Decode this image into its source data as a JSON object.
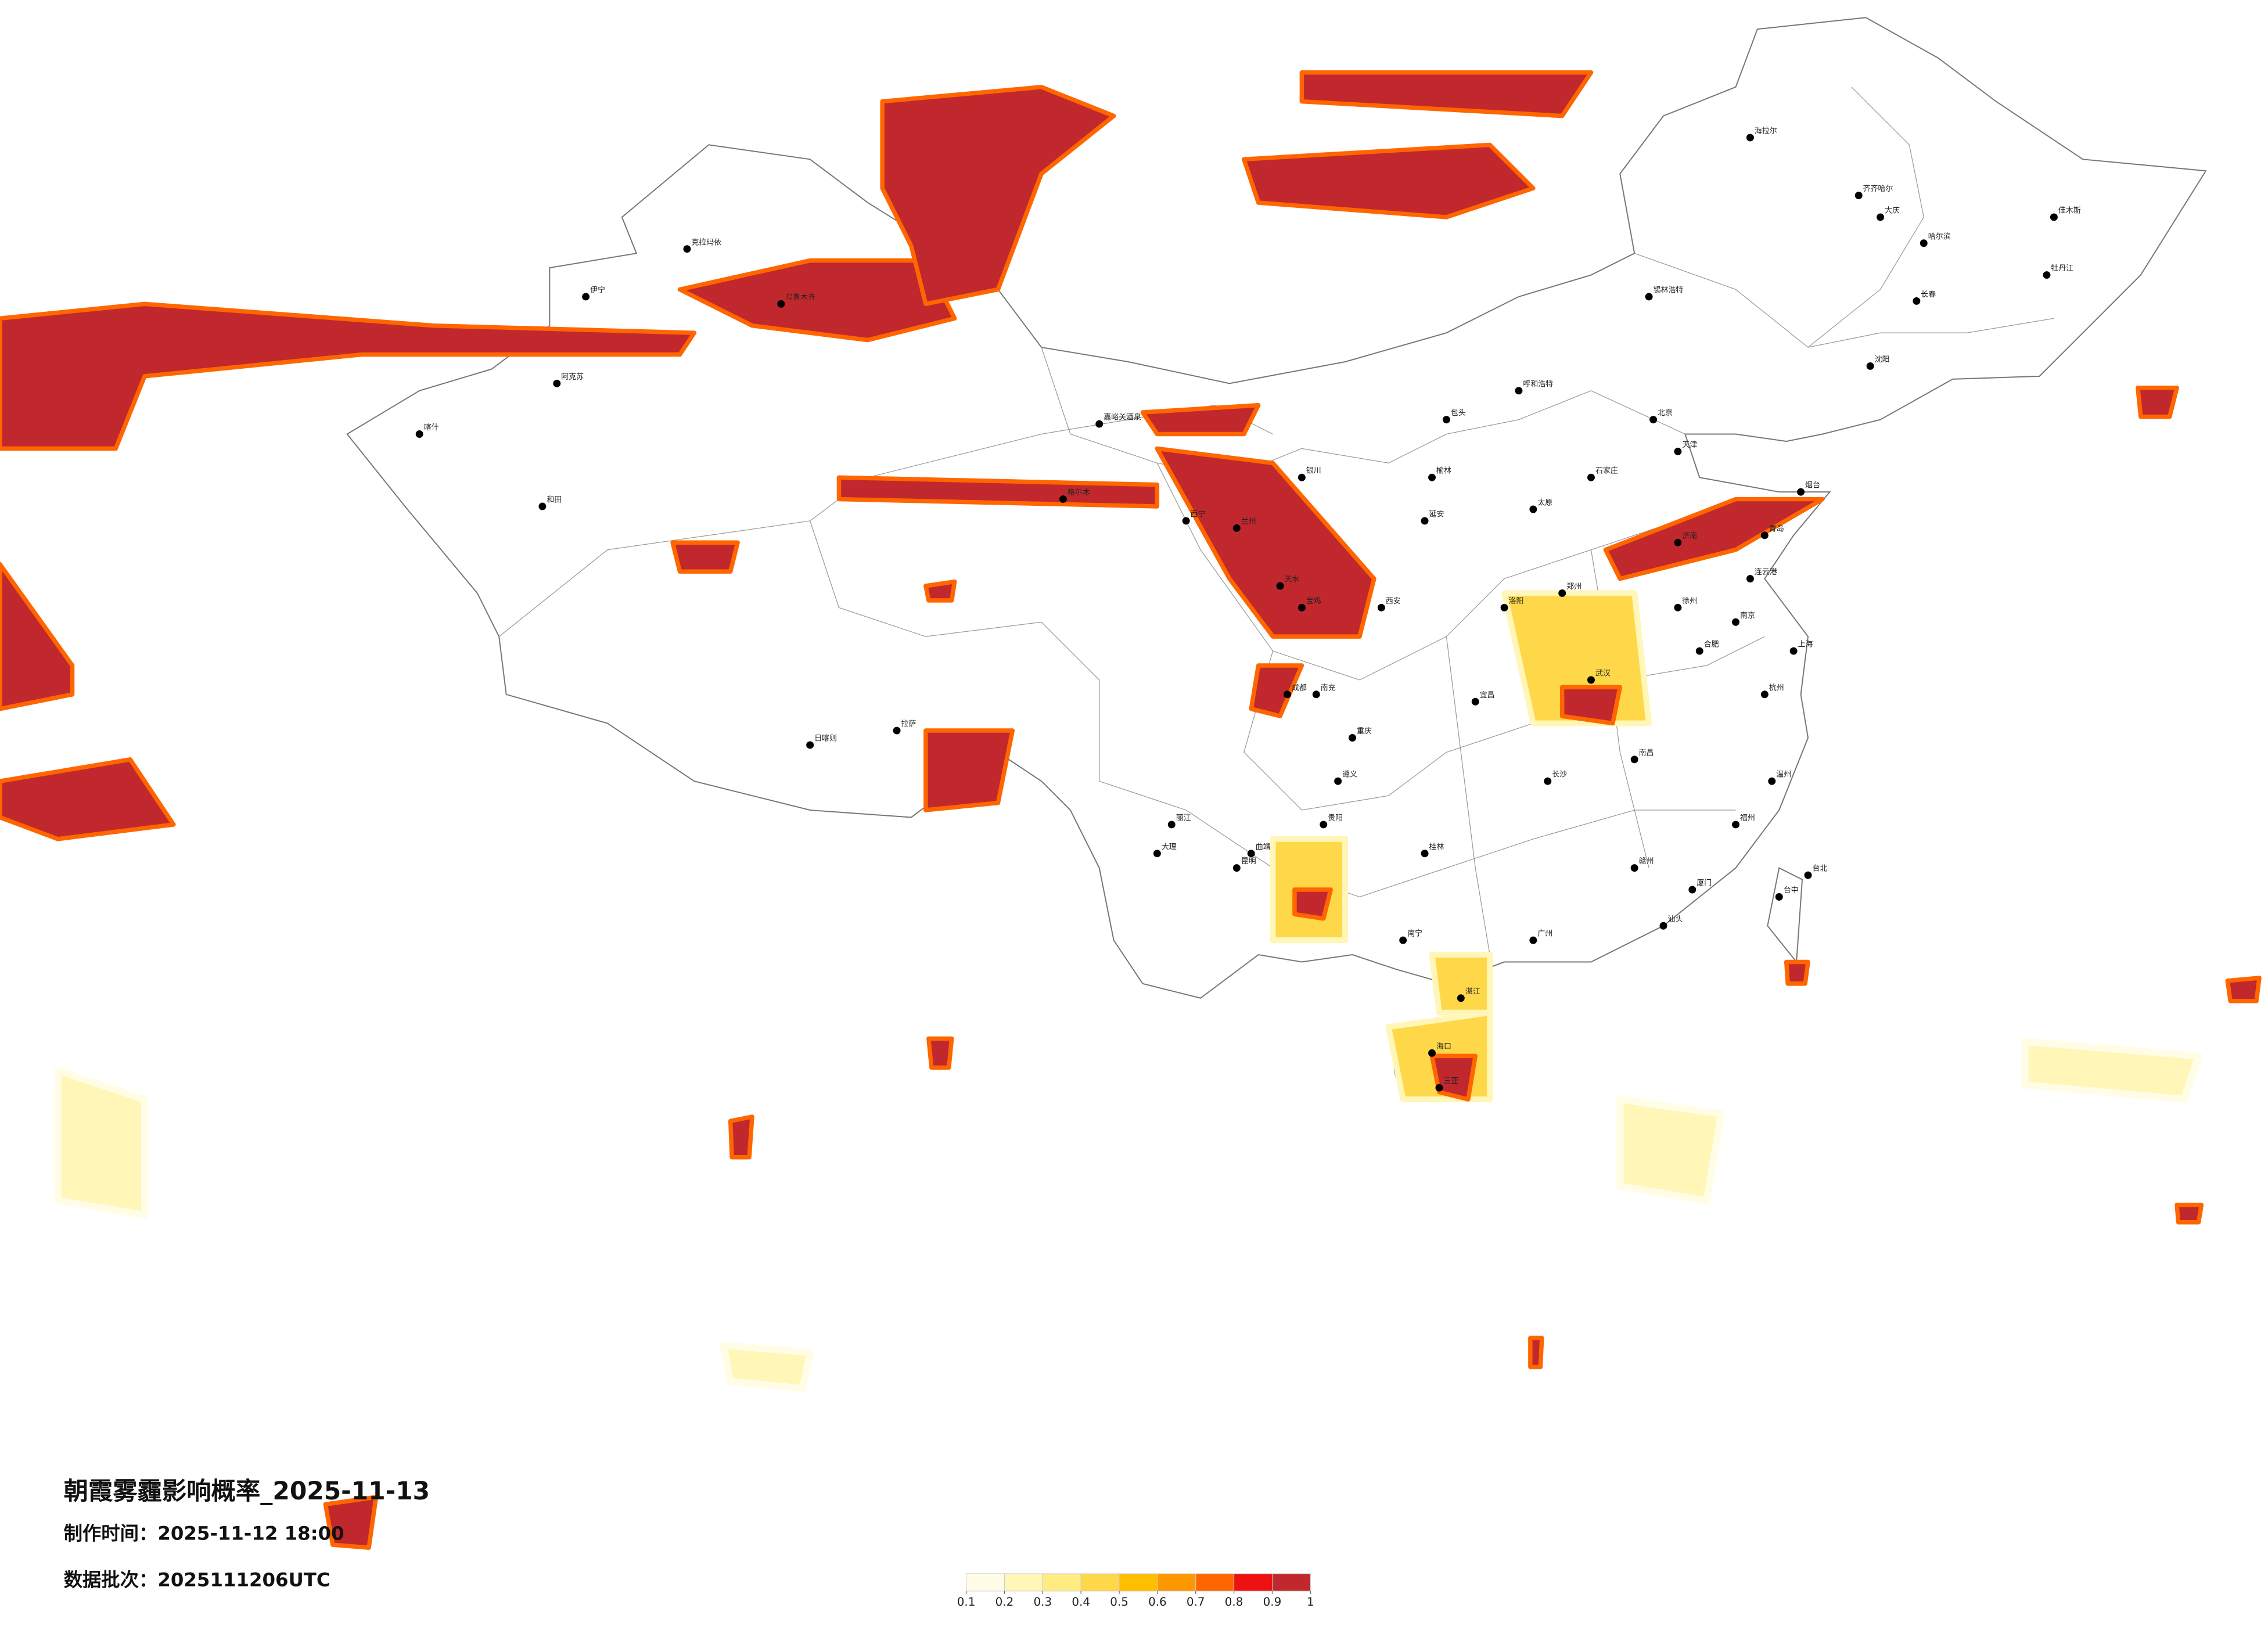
{
  "title": "朝霞雾霾影响概率_2025-11-13",
  "production_time": "制作时间：2025-11-12 18:00",
  "data_batch": "数据批次：2025111206UTC",
  "legend": {
    "ticks": [
      0.1,
      0.2,
      0.3,
      0.4,
      0.5,
      0.6,
      0.7,
      0.8,
      0.9,
      1
    ],
    "colors": [
      "#fffde6",
      "#fff6b8",
      "#ffec82",
      "#ffd84a",
      "#ffbf00",
      "#ff9800",
      "#ff6600",
      "#ee1111",
      "#c0282d"
    ]
  },
  "cities": [
    "北京",
    "天津",
    "石家庄",
    "太原",
    "济南",
    "郑州",
    "西安",
    "兰州",
    "西宁",
    "银川",
    "呼和浩特",
    "哈尔滨",
    "长春",
    "沈阳",
    "乌鲁木齐",
    "拉萨",
    "成都",
    "重庆",
    "贵阳",
    "昆明",
    "南宁",
    "广州",
    "海口",
    "长沙",
    "武汉",
    "南昌",
    "合肥",
    "南京",
    "上海",
    "杭州",
    "福州",
    "台北",
    "台中",
    "和田",
    "喀什",
    "阿克苏",
    "克拉玛依",
    "伊宁",
    "海拉尔",
    "齐齐哈尔",
    "日喀则",
    "格尔木",
    "嘉峪关酒泉",
    "大理",
    "锡林浩特",
    "烟台",
    "青岛",
    "厦门",
    "三亚",
    "佳木斯",
    "牡丹江",
    "大庆",
    "包头",
    "榆林",
    "延安",
    "宝鸡",
    "洛阳",
    "徐州",
    "连云港",
    "宜昌",
    "桂林",
    "赣州",
    "温州",
    "汕头",
    "湛江",
    "丽江",
    "曲靖",
    "遵义",
    "南充",
    "天水"
  ]
}
